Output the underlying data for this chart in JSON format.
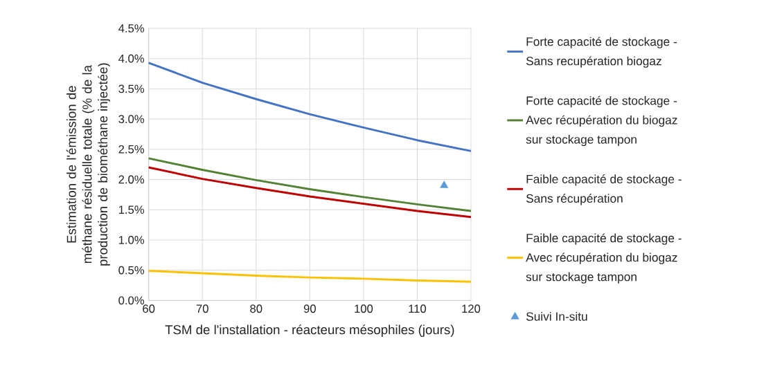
{
  "chart_data": {
    "type": "line",
    "xlabel": "TSM de l'installation - réacteurs mésophiles (jours)",
    "ylabel": "Estimation de l'émission de méthane résiduelle totale (% de la production de biométhane injectée)",
    "x": [
      60,
      70,
      80,
      90,
      100,
      110,
      120
    ],
    "series": [
      {
        "name": "Forte capacité de stockage - Sans recupération biogaz",
        "color": "#4472c4",
        "values": [
          3.93,
          3.6,
          3.33,
          3.08,
          2.86,
          2.65,
          2.47
        ]
      },
      {
        "name": "Forte capacité de stockage - Avec récupération du biogaz sur stockage tampon",
        "color": "#548235",
        "values": [
          2.35,
          2.16,
          1.99,
          1.84,
          1.71,
          1.59,
          1.48
        ]
      },
      {
        "name": "Faible capacité de stockage - Sans récupération",
        "color": "#c00000",
        "values": [
          2.2,
          2.01,
          1.86,
          1.72,
          1.6,
          1.48,
          1.38
        ]
      },
      {
        "name": "Faible capacité de stockage - Avec récupération du biogaz sur stockage tampon",
        "color": "#ffc000",
        "values": [
          0.49,
          0.45,
          0.41,
          0.38,
          0.36,
          0.33,
          0.31
        ]
      },
      {
        "name": "Suivi In-situ",
        "type": "scatter",
        "marker": "triangle",
        "color": "#5b9bd5",
        "x": [
          115
        ],
        "values": [
          1.9
        ]
      }
    ],
    "xlim": [
      60,
      120
    ],
    "xticks": [
      60,
      70,
      80,
      90,
      100,
      110,
      120
    ],
    "ylim": [
      0,
      4.5
    ],
    "yticks": [
      {
        "value": 0,
        "label": "0.0%"
      },
      {
        "value": 0.5,
        "label": "0.5%"
      },
      {
        "value": 1,
        "label": "1.0%"
      },
      {
        "value": 1.5,
        "label": "1.5%"
      },
      {
        "value": 2,
        "label": "2.0%"
      },
      {
        "value": 2.5,
        "label": "2.5%"
      },
      {
        "value": 3,
        "label": "3.0%"
      },
      {
        "value": 3.5,
        "label": "3.5%"
      },
      {
        "value": 4,
        "label": "4.0%"
      },
      {
        "value": 4.5,
        "label": "4.5%"
      }
    ],
    "grid": true,
    "legend": "right",
    "marker": "none",
    "line_style": "solid"
  }
}
